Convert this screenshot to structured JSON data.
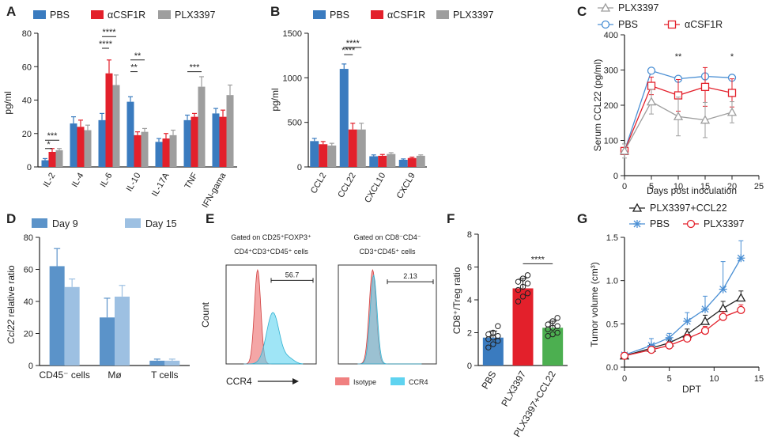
{
  "colors": {
    "blue": "#3a7bbf",
    "red": "#e3202b",
    "gray": "#9e9e9e",
    "day9": "#5b93c9",
    "day15": "#9dc0e2",
    "green": "#4caf50",
    "black": "#222222",
    "lightblue": "#4a8fd4",
    "iso": "#f08080",
    "ccr4": "#5fd3f0"
  },
  "panel_letters": {
    "A": "A",
    "B": "B",
    "C": "C",
    "D": "D",
    "E": "E",
    "F": "F",
    "G": "G"
  },
  "chart_data": [
    {
      "panel": "A",
      "type": "bar",
      "legend": [
        "PBS",
        "αCSF1R",
        "PLX3397"
      ],
      "categories": [
        "IL-2",
        "IL-4",
        "IL-6",
        "IL-10",
        "IL-17A",
        "TNF",
        "IFN-gama"
      ],
      "series": [
        {
          "name": "PBS",
          "values": [
            4,
            26,
            28,
            39,
            15,
            28,
            32
          ],
          "err": [
            1,
            4,
            4,
            3,
            2,
            3,
            3
          ]
        },
        {
          "name": "αCSF1R",
          "values": [
            9,
            24,
            56,
            19,
            17,
            30,
            30
          ],
          "err": [
            2,
            4,
            8,
            2,
            3,
            2,
            4
          ]
        },
        {
          "name": "PLX3397",
          "values": [
            10,
            22,
            49,
            21,
            19,
            48,
            43
          ],
          "err": [
            1,
            3,
            6,
            2,
            3,
            6,
            6
          ]
        }
      ],
      "ylabel": "pg/ml",
      "ylim": [
        0,
        80
      ],
      "yticks": [
        0,
        20,
        40,
        60,
        80
      ],
      "annotations": [
        "***",
        "*",
        "****",
        "****",
        "**",
        "**",
        "***"
      ]
    },
    {
      "panel": "B",
      "type": "bar",
      "legend": [
        "PBS",
        "αCSF1R",
        "PLX3397"
      ],
      "categories": [
        "CCL2",
        "CCL22",
        "CXCL10",
        "CXCL9"
      ],
      "series": [
        {
          "name": "PBS",
          "values": [
            290,
            1100,
            120,
            80
          ],
          "err": [
            30,
            55,
            15,
            10
          ]
        },
        {
          "name": "αCSF1R",
          "values": [
            255,
            420,
            125,
            100
          ],
          "err": [
            30,
            70,
            15,
            10
          ]
        },
        {
          "name": "PLX3397",
          "values": [
            240,
            420,
            145,
            125
          ],
          "err": [
            25,
            70,
            15,
            10
          ]
        }
      ],
      "ylabel": "pg/ml",
      "ylim": [
        0,
        1500
      ],
      "yticks": [
        0,
        500,
        1000,
        1500
      ],
      "annotations": [
        "****",
        "****"
      ]
    },
    {
      "panel": "C",
      "type": "line",
      "legend": [
        "PLX3397",
        "PBS",
        "αCSF1R"
      ],
      "x": [
        0,
        5,
        10,
        15,
        20
      ],
      "series": [
        {
          "name": "PBS",
          "values": [
            70,
            298,
            275,
            282,
            278
          ],
          "err": [
            8,
            5,
            6,
            5,
            6
          ]
        },
        {
          "name": "αCSF1R",
          "values": [
            70,
            255,
            228,
            252,
            235
          ],
          "err": [
            8,
            25,
            45,
            55,
            40
          ]
        },
        {
          "name": "PLX3397",
          "values": [
            70,
            210,
            168,
            158,
            180
          ],
          "err": [
            20,
            35,
            55,
            50,
            30
          ]
        }
      ],
      "xlabel": "Days post inoculation",
      "ylabel": "Serum CCL22 (pg/ml)",
      "xlim": [
        0,
        25
      ],
      "ylim": [
        0,
        400
      ],
      "xticks": [
        0,
        5,
        10,
        15,
        20,
        25
      ],
      "yticks": [
        0,
        100,
        200,
        300,
        400
      ],
      "annotations": [
        "**",
        "*"
      ]
    },
    {
      "panel": "D",
      "type": "bar",
      "legend": [
        "Day 9",
        "Day 15"
      ],
      "categories": [
        "CD45⁻ cells",
        "Mø",
        "T cells"
      ],
      "series": [
        {
          "name": "Day 9",
          "values": [
            62,
            30,
            3
          ],
          "err": [
            11,
            12,
            1
          ]
        },
        {
          "name": "Day 15",
          "values": [
            49,
            43,
            3
          ],
          "err": [
            5,
            7,
            1
          ]
        }
      ],
      "ylabel_pre": "Ccl22",
      "ylabel_post": " relative ratio",
      "ylim": [
        0,
        80
      ],
      "yticks": [
        0,
        20,
        40,
        60,
        80
      ]
    },
    {
      "panel": "E",
      "type": "histogram",
      "titles": [
        [
          "Gated on CD25⁺FOXP3⁺",
          "CD4⁺CD3⁺CD45⁺ cells"
        ],
        [
          "Gated on CD8⁻CD4⁻",
          "CD3⁺CD45⁺ cells"
        ]
      ],
      "gate_values": [
        "56.7",
        "2.13"
      ],
      "ylabel": "Count",
      "xlabel": "CCR4",
      "legend": [
        "Isotype",
        "CCR4"
      ]
    },
    {
      "panel": "F",
      "type": "bar",
      "categories": [
        "PBS",
        "PLX3397",
        "PLX3397+CCL22"
      ],
      "values": [
        1.7,
        4.7,
        2.3
      ],
      "err": [
        0.4,
        0.6,
        0.4
      ],
      "points": [
        [
          1.1,
          1.3,
          1.5,
          1.6,
          1.7,
          1.8,
          1.9,
          2.0,
          2.4
        ],
        [
          3.9,
          4.2,
          4.4,
          4.6,
          4.8,
          5.0,
          5.1,
          5.3,
          5.5
        ],
        [
          1.8,
          1.9,
          2.0,
          2.2,
          2.3,
          2.4,
          2.5,
          2.7,
          2.9
        ]
      ],
      "ylabel": "CD8⁺/Treg ratio",
      "ylim": [
        0,
        8
      ],
      "yticks": [
        0,
        2,
        4,
        6,
        8
      ],
      "annotations": [
        "****"
      ]
    },
    {
      "panel": "G",
      "type": "line",
      "legend": [
        "PLX3397+CCL22",
        "PBS",
        "PLX3397"
      ],
      "x": [
        0,
        3,
        5,
        7,
        9,
        11,
        13
      ],
      "series": [
        {
          "name": "PLX3397+CCL22",
          "values": [
            0.13,
            0.22,
            0.28,
            0.38,
            0.53,
            0.68,
            0.8
          ],
          "err": [
            0.02,
            0.04,
            0.05,
            0.06,
            0.07,
            0.08,
            0.08
          ]
        },
        {
          "name": "PBS",
          "values": [
            0.14,
            0.25,
            0.34,
            0.53,
            0.67,
            0.9,
            1.26
          ],
          "err": [
            0.02,
            0.08,
            0.05,
            0.1,
            0.15,
            0.32,
            0.2
          ]
        },
        {
          "name": "PLX3397",
          "values": [
            0.13,
            0.2,
            0.25,
            0.33,
            0.42,
            0.58,
            0.66
          ],
          "err": [
            0.02,
            0.04,
            0.04,
            0.05,
            0.05,
            0.06,
            0.06
          ]
        }
      ],
      "xlabel": "DPT",
      "ylabel": "Tumor volume (cm³)",
      "xlim": [
        0,
        15
      ],
      "ylim": [
        0,
        1.5
      ],
      "xticks": [
        0,
        5,
        10,
        15
      ],
      "yticks": [
        0.0,
        0.5,
        1.0,
        1.5
      ]
    }
  ]
}
